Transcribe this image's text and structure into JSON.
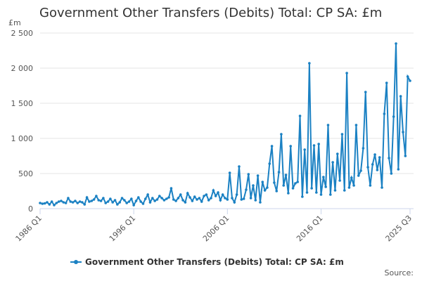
{
  "chart_data": {
    "type": "line",
    "title": "Government Other Transfers (Debits) Total: CP SA: £m",
    "y_label": "£m",
    "source": "Source:",
    "grid": true,
    "ylim": [
      0,
      2500
    ],
    "yticks": [
      0,
      500,
      {
        "value": 1000,
        "label": "1 000"
      },
      {
        "value": 1500,
        "label": "1 500"
      },
      {
        "value": 2000,
        "label": "2 000"
      },
      {
        "value": 2500,
        "label": "2 500"
      }
    ],
    "categories": [
      "1986 Q1",
      null,
      null,
      null,
      null,
      null,
      null,
      null,
      null,
      null,
      null,
      null,
      null,
      null,
      null,
      null,
      null,
      null,
      null,
      null,
      null,
      null,
      null,
      null,
      null,
      null,
      null,
      null,
      null,
      null,
      null,
      null,
      null,
      null,
      null,
      null,
      null,
      null,
      null,
      null,
      "1996 Q1",
      null,
      null,
      null,
      null,
      null,
      null,
      null,
      null,
      null,
      null,
      null,
      null,
      null,
      null,
      null,
      null,
      null,
      null,
      null,
      null,
      null,
      null,
      null,
      null,
      null,
      null,
      null,
      null,
      null,
      null,
      null,
      null,
      null,
      null,
      null,
      null,
      null,
      null,
      null,
      "2006 Q1",
      null,
      null,
      null,
      null,
      null,
      null,
      null,
      null,
      null,
      null,
      null,
      null,
      null,
      null,
      null,
      null,
      null,
      null,
      null,
      null,
      null,
      null,
      null,
      null,
      null,
      null,
      null,
      null,
      null,
      null,
      null,
      null,
      null,
      null,
      null,
      null,
      null,
      null,
      null,
      "2016 Q1",
      null,
      null,
      null,
      null,
      null,
      null,
      null,
      null,
      null,
      null,
      null,
      null,
      null,
      null,
      null,
      null,
      null,
      null,
      null,
      null,
      null,
      null,
      null,
      null,
      null,
      null,
      null,
      null,
      null,
      null,
      null,
      null,
      null,
      null,
      null,
      null,
      null,
      "2025 Q3"
    ],
    "series": [
      {
        "name": "Government Other Transfers (Debits) Total: CP SA: £m",
        "color": "#1b81c3",
        "values": [
          80,
          70,
          75,
          90,
          60,
          100,
          50,
          80,
          100,
          110,
          90,
          80,
          150,
          100,
          90,
          110,
          80,
          100,
          90,
          60,
          160,
          100,
          110,
          130,
          180,
          120,
          110,
          150,
          80,
          100,
          140,
          90,
          120,
          60,
          90,
          150,
          120,
          80,
          100,
          140,
          50,
          110,
          160,
          100,
          70,
          140,
          200,
          90,
          150,
          110,
          130,
          180,
          150,
          120,
          140,
          160,
          290,
          130,
          110,
          150,
          200,
          120,
          90,
          220,
          160,
          110,
          170,
          130,
          150,
          100,
          180,
          200,
          120,
          150,
          260,
          180,
          230,
          120,
          200,
          150,
          130,
          510,
          150,
          90,
          200,
          600,
          130,
          140,
          270,
          490,
          150,
          330,
          120,
          470,
          90,
          380,
          260,
          300,
          640,
          890,
          370,
          250,
          520,
          1060,
          330,
          480,
          220,
          890,
          290,
          360,
          380,
          1320,
          170,
          840,
          230,
          2070,
          290,
          900,
          230,
          920,
          200,
          450,
          310,
          1190,
          200,
          660,
          260,
          780,
          400,
          1060,
          260,
          1930,
          300,
          440,
          330,
          1190,
          470,
          540,
          860,
          1660,
          590,
          330,
          630,
          770,
          550,
          730,
          300,
          1350,
          1790,
          720,
          500,
          1310,
          2350,
          560,
          1600,
          1090,
          750,
          1880,
          1820
        ]
      }
    ]
  }
}
